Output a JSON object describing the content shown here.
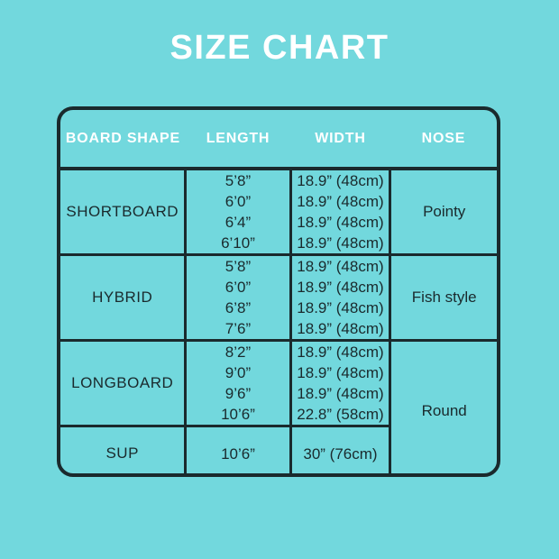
{
  "title": "SIZE CHART",
  "colors": {
    "background": "#72d8dd",
    "border_and_text": "#1a2a2d",
    "header_text": "#ffffff"
  },
  "chart_data": {
    "type": "table",
    "title": "SIZE CHART",
    "columns": [
      "BOARD SHAPE",
      "LENGTH",
      "WIDTH",
      "NOSE"
    ],
    "rows": [
      {
        "shape": "SHORTBOARD",
        "lengths": [
          "5’8”",
          "6’0”",
          "6’4”",
          "6’10”"
        ],
        "widths": [
          "18.9” (48cm)",
          "18.9” (48cm)",
          "18.9” (48cm)",
          "18.9” (48cm)"
        ],
        "nose": "Pointy"
      },
      {
        "shape": "HYBRID",
        "lengths": [
          "5’8”",
          "6’0”",
          "6’8”",
          "7’6”"
        ],
        "widths": [
          "18.9” (48cm)",
          "18.9” (48cm)",
          "18.9” (48cm)",
          "18.9” (48cm)"
        ],
        "nose": "Fish style"
      },
      {
        "shape": "LONGBOARD",
        "lengths": [
          "8’2”",
          "9’0”",
          "9’6”",
          "10’6”"
        ],
        "widths": [
          "18.9” (48cm)",
          "18.9” (48cm)",
          "18.9” (48cm)",
          "22.8” (58cm)"
        ],
        "nose": "Round",
        "nose_rowspan": 2
      },
      {
        "shape": "SUP",
        "lengths": [
          "10’6”"
        ],
        "widths": [
          "30” (76cm)"
        ]
      }
    ]
  }
}
